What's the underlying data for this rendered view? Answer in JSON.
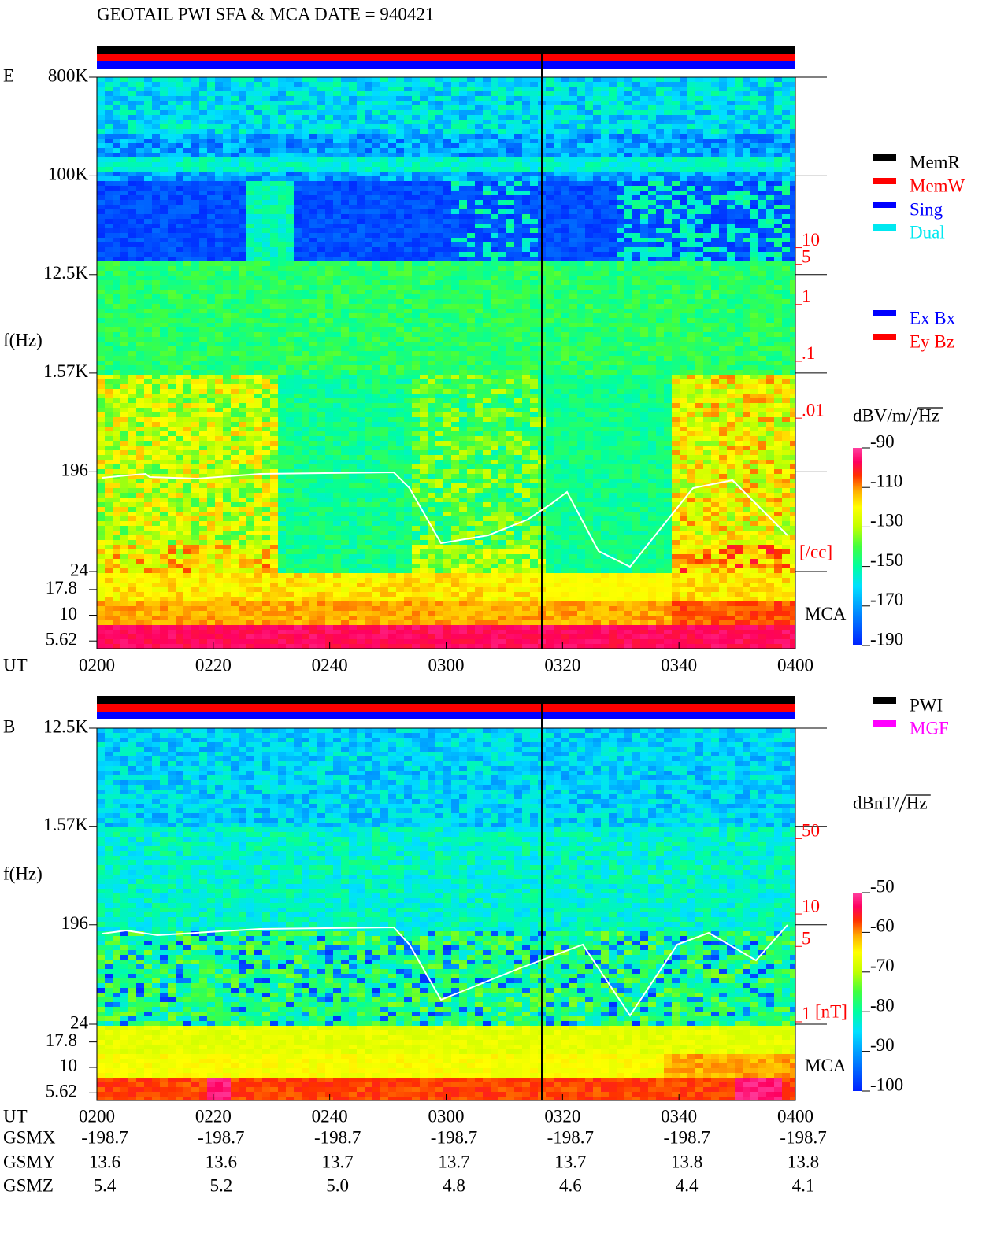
{
  "title": "GEOTAIL  PWI SFA & MCA  DATE = 940421",
  "chart_data": [
    {
      "type": "spectrogram",
      "panel": "E",
      "ylabel": "f(Hz)",
      "xlabel": "UT",
      "log_y": true,
      "ylim": [
        24,
        800000
      ],
      "yticks": [
        {
          "value": 800000,
          "label": "800K"
        },
        {
          "value": 100000,
          "label": "100K"
        },
        {
          "value": 12500,
          "label": "12.5K"
        },
        {
          "value": 1570,
          "label": "1.57K"
        },
        196,
        24
      ],
      "mca_label": "MCA",
      "mca_ticks": [
        17.8,
        10,
        5.62
      ],
      "x": [
        "0200",
        "0220",
        "0240",
        "0300",
        "0320",
        "0340",
        "0400"
      ],
      "y2label": "[/cc]",
      "y2lim": [
        2e-05,
        10000
      ],
      "y2ticks": [
        10,
        5,
        1,
        {
          "value": 0.1,
          "label": ".1"
        },
        {
          "value": 0.01,
          "label": ".01"
        }
      ],
      "legend": [
        {
          "name": "MemR",
          "color": "#000000"
        },
        {
          "name": "MemW",
          "color": "#ff0000"
        },
        {
          "name": "Sing",
          "color": "#0000ff"
        },
        {
          "name": "Dual",
          "color": "#00e8f0"
        }
      ],
      "legend2": [
        {
          "name": "Ex Bx",
          "color": "#0000ff"
        },
        {
          "name": "Ey Bz",
          "color": "#ff0000"
        }
      ],
      "colorbar": {
        "units": "dBV/m/",
        "units_root": "Hz",
        "clim": [
          -190,
          -90
        ],
        "ticks": [
          -90,
          -110,
          -130,
          -150,
          -170,
          -190
        ]
      }
    },
    {
      "type": "spectrogram",
      "panel": "B",
      "ylabel": "f(Hz)",
      "xlabel": "UT",
      "log_y": true,
      "ylim": [
        24,
        12500
      ],
      "yticks": [
        {
          "value": 12500,
          "label": "12.5K"
        },
        {
          "value": 1570,
          "label": "1.57K"
        },
        196,
        24
      ],
      "mca_label": "MCA",
      "mca_ticks": [
        17.8,
        10,
        5.62
      ],
      "x": [
        "0200",
        "0220",
        "0240",
        "0300",
        "0320",
        "0340",
        "0400"
      ],
      "y2label": "[nT]",
      "y2lim": [
        0.95,
        530
      ],
      "y2ticks": [
        50,
        10,
        5,
        1
      ],
      "legend": [
        {
          "name": "PWI",
          "color": "#000000"
        },
        {
          "name": "MGF",
          "color": "#ff00ff"
        }
      ],
      "colorbar": {
        "units": "dBnT/",
        "units_root": "Hz",
        "clim": [
          -100,
          -50
        ],
        "ticks": [
          -50,
          -60,
          -70,
          -80,
          -90,
          -100
        ]
      }
    }
  ],
  "orbit": {
    "rows": [
      {
        "name": "GSMX",
        "values": [
          -198.7,
          -198.7,
          -198.7,
          -198.7,
          -198.7,
          -198.7,
          -198.7
        ]
      },
      {
        "name": "GSMY",
        "values": [
          13.6,
          13.6,
          13.7,
          13.7,
          13.7,
          13.8,
          13.8
        ]
      },
      {
        "name": "GSMZ",
        "values": [
          5.4,
          5.2,
          {
            "value": 5,
            "label": "5.0"
          },
          4.8,
          4.6,
          4.4,
          4.1
        ]
      }
    ]
  }
}
